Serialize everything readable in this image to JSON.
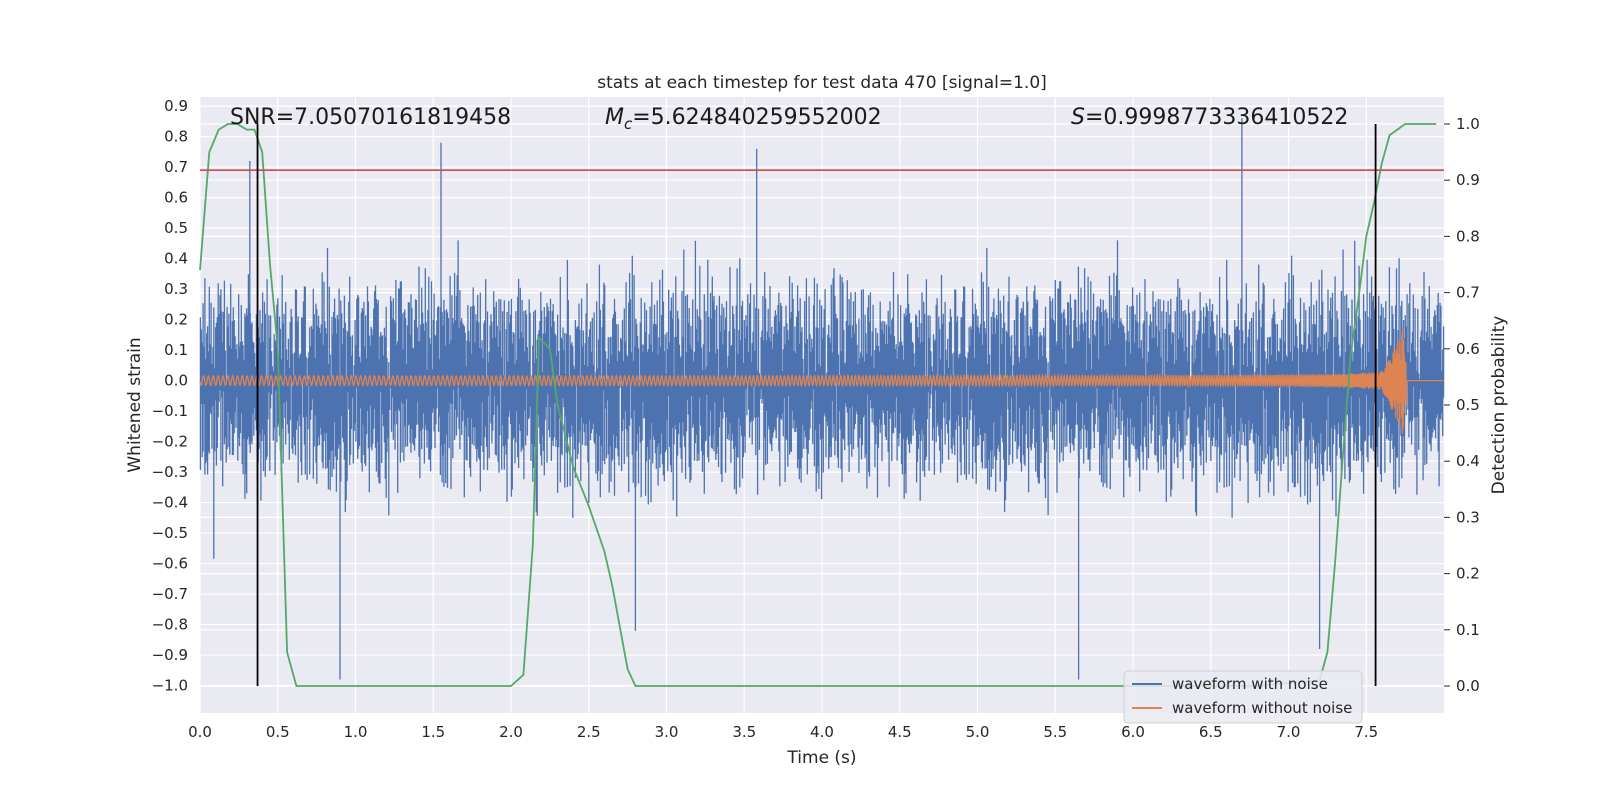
{
  "chart_data": {
    "type": "line",
    "title": "stats at each timestep for test data 470 [signal=1.0]",
    "xlabel": "Time (s)",
    "ylabel_left": "Whitened strain",
    "ylabel_right": "Detection probability",
    "xlim": [
      0.0,
      8.0
    ],
    "ylim_left": [
      -1.09,
      0.93
    ],
    "ylim_right": [
      0.0,
      1.0
    ],
    "x_ticks": [
      "0.0",
      "0.5",
      "1.0",
      "1.5",
      "2.0",
      "2.5",
      "3.0",
      "3.5",
      "4.0",
      "4.5",
      "5.0",
      "5.5",
      "6.0",
      "6.5",
      "7.0",
      "7.5"
    ],
    "y_left_ticks": [
      "0.9",
      "0.8",
      "0.7",
      "0.6",
      "0.5",
      "0.4",
      "0.3",
      "0.2",
      "0.1",
      "0.0",
      "−0.1",
      "−0.2",
      "−0.3",
      "−0.4",
      "−0.5",
      "−0.6",
      "−0.7",
      "−0.8",
      "−0.9",
      "−1.0"
    ],
    "y_right_ticks": [
      "0.0",
      "0.1",
      "0.2",
      "0.3",
      "0.4",
      "0.5",
      "0.6",
      "0.7",
      "0.8",
      "0.9",
      "1.0"
    ],
    "grid": true,
    "legend_position": "lower-right",
    "annotations": {
      "snr": "SNR=7.05070161819458",
      "mc_symbol": "M",
      "mc_subscript": "c",
      "mc_value": "=5.624840259552002",
      "s_symbol": "S",
      "s_value": "=0.9998773336410522"
    },
    "threshold_left": 0.69,
    "vertical_markers_s": [
      0.37,
      7.56
    ],
    "series": [
      {
        "name": "waveform with noise",
        "color": "#4c72b0",
        "description_values": "dense whitened noise, typical range -0.45 to 0.45",
        "peaks": [
          {
            "x": 0.32,
            "y": 0.72
          },
          {
            "x": 1.55,
            "y": 0.78
          },
          {
            "x": 3.58,
            "y": 0.76
          },
          {
            "x": 6.7,
            "y": 0.86
          },
          {
            "x": 0.9,
            "y": -0.98
          },
          {
            "x": 5.65,
            "y": -0.98
          },
          {
            "x": 7.2,
            "y": -0.88
          },
          {
            "x": 2.8,
            "y": -0.82
          }
        ]
      },
      {
        "name": "waveform without noise",
        "color": "#dd8452",
        "chirp": {
          "start_amp": 0.015,
          "peak_time": 7.75,
          "peak_amp": 0.21,
          "min_amp": -0.14
        }
      },
      {
        "name": "detection probability",
        "color": "#55a868",
        "axis": "right",
        "x": [
          0.0,
          0.06,
          0.12,
          0.18,
          0.24,
          0.3,
          0.35,
          0.4,
          0.45,
          0.5,
          0.56,
          0.62,
          0.7,
          1.0,
          1.5,
          1.8,
          2.0,
          2.08,
          2.14,
          2.18,
          2.25,
          2.3,
          2.4,
          2.5,
          2.6,
          2.65,
          2.75,
          2.8,
          2.9,
          3.5,
          5.0,
          6.0,
          6.8,
          7.2,
          7.25,
          7.3,
          7.35,
          7.4,
          7.45,
          7.5,
          7.55,
          7.6,
          7.65,
          7.7,
          7.75,
          7.85,
          7.95
        ],
        "y": [
          0.74,
          0.95,
          0.99,
          1.0,
          1.0,
          0.99,
          0.99,
          0.95,
          0.75,
          0.6,
          0.06,
          0.0,
          0.0,
          0.0,
          0.0,
          0.0,
          0.0,
          0.02,
          0.25,
          0.62,
          0.6,
          0.5,
          0.39,
          0.32,
          0.24,
          0.18,
          0.03,
          0.0,
          0.0,
          0.0,
          0.0,
          0.0,
          0.0,
          0.01,
          0.06,
          0.22,
          0.41,
          0.59,
          0.69,
          0.8,
          0.86,
          0.93,
          0.98,
          0.99,
          1.0,
          1.0,
          1.0
        ]
      }
    ],
    "colors": {
      "background": "#eaeaf2",
      "grid": "#ffffff",
      "threshold": "#c44e52",
      "marker": "#000000"
    }
  }
}
